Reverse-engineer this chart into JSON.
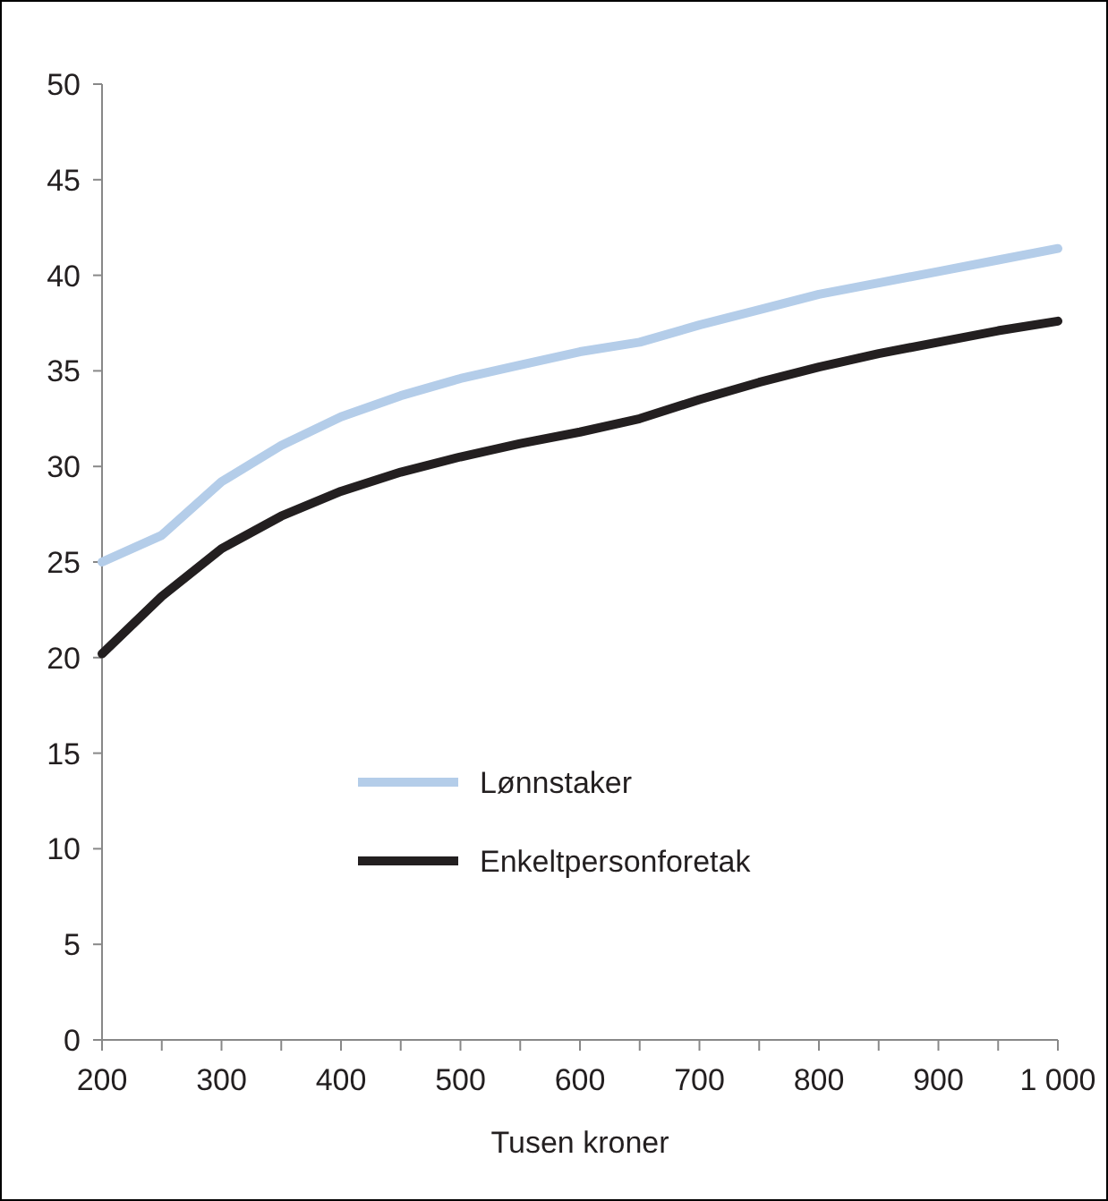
{
  "chart_data": {
    "type": "line",
    "xlabel": "Tusen kroner",
    "x": [
      200,
      250,
      300,
      350,
      400,
      450,
      500,
      550,
      600,
      650,
      700,
      750,
      800,
      850,
      900,
      950,
      1000
    ],
    "series": [
      {
        "name": "Lønnstaker",
        "color": "#b4cde9",
        "values": [
          25,
          26.4,
          29.2,
          31.1,
          32.6,
          33.7,
          34.6,
          35.3,
          36,
          36.5,
          37.4,
          38.2,
          39,
          39.6,
          40.2,
          40.8,
          41.4
        ]
      },
      {
        "name": "Enkeltpersonforetak",
        "color": "#231f20",
        "values": [
          20.2,
          23.2,
          25.7,
          27.4,
          28.7,
          29.7,
          30.5,
          31.2,
          31.8,
          32.5,
          33.5,
          34.4,
          35.2,
          35.9,
          36.5,
          37.1,
          37.6
        ]
      }
    ],
    "xlim": [
      200,
      1000
    ],
    "xticks": [
      200,
      {
        "value": 250,
        "label": null
      },
      300,
      {
        "value": 350,
        "label": null
      },
      400,
      {
        "value": 450,
        "label": null
      },
      500,
      {
        "value": 550,
        "label": null
      },
      600,
      {
        "value": 650,
        "label": null
      },
      700,
      {
        "value": 750,
        "label": null
      },
      800,
      {
        "value": 850,
        "label": null
      },
      900,
      {
        "value": 950,
        "label": null
      },
      {
        "value": 1000,
        "label": "1 000"
      }
    ],
    "ylim": [
      0,
      50
    ],
    "yticks": [
      0,
      5,
      10,
      15,
      20,
      25,
      30,
      35,
      40,
      45,
      50
    ],
    "grid": false,
    "legend": "left",
    "marker": "none",
    "line_style": "solid"
  }
}
